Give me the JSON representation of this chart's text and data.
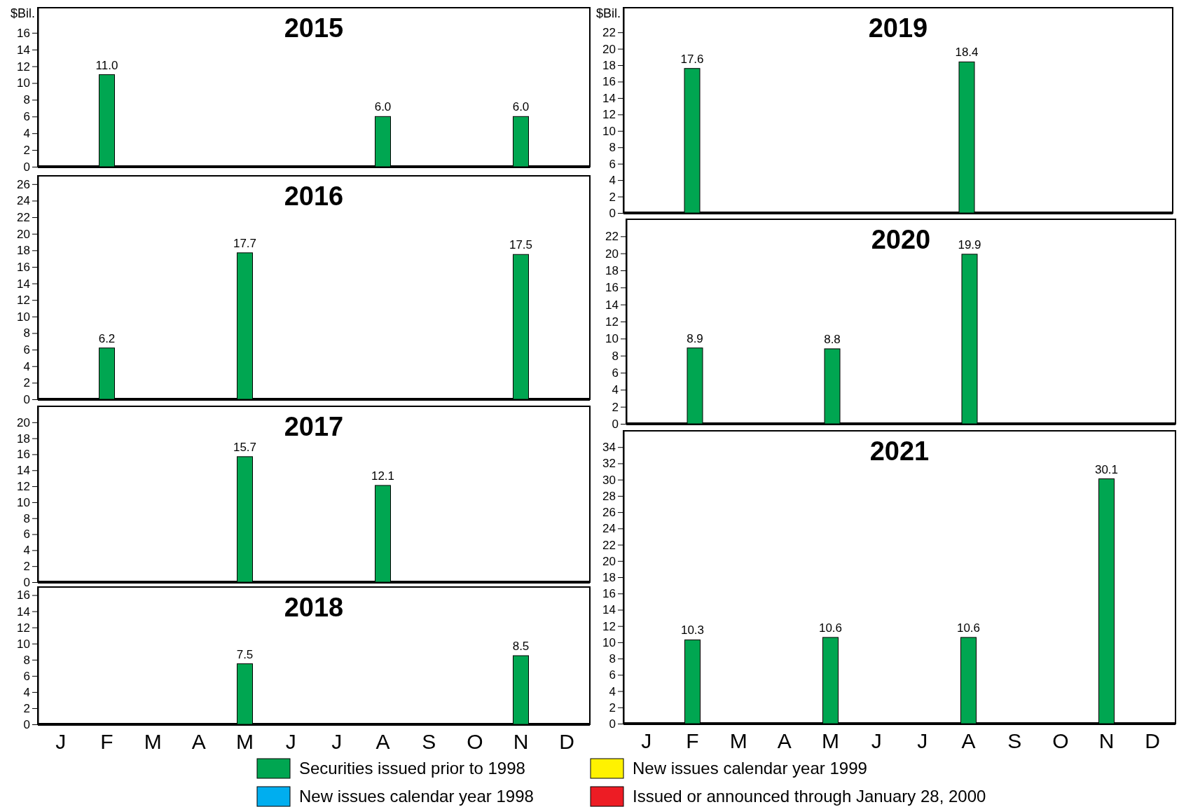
{
  "chart_data": [
    {
      "type": "bar",
      "title": "2015",
      "ylabel": "$Bil.",
      "categories": [
        null,
        null,
        null,
        null,
        null,
        null,
        null,
        null,
        null,
        null,
        null,
        null
      ],
      "ylim": [
        0,
        19
      ],
      "yticks": [
        0,
        2,
        4,
        6,
        8,
        10,
        12,
        14,
        16
      ],
      "series": [
        {
          "color": "#00a651",
          "values": [
            null,
            11.0,
            null,
            null,
            null,
            null,
            null,
            6.0,
            null,
            null,
            6.0,
            null
          ],
          "value_labels": [
            null,
            "11.0",
            null,
            null,
            null,
            null,
            null,
            "6.0",
            null,
            null,
            "6.0",
            null
          ]
        }
      ]
    },
    {
      "type": "bar",
      "title": "2016",
      "categories": [
        null,
        null,
        null,
        null,
        null,
        null,
        null,
        null,
        null,
        null,
        null,
        null
      ],
      "ylim": [
        0,
        27
      ],
      "yticks": [
        0,
        2,
        4,
        6,
        8,
        10,
        12,
        14,
        16,
        18,
        20,
        22,
        24,
        26
      ],
      "series": [
        {
          "color": "#00a651",
          "values": [
            null,
            6.2,
            null,
            null,
            17.7,
            null,
            null,
            null,
            null,
            null,
            17.5,
            null
          ],
          "value_labels": [
            null,
            "6.2",
            null,
            null,
            "17.7",
            null,
            null,
            null,
            null,
            null,
            "17.5",
            null
          ]
        }
      ]
    },
    {
      "type": "bar",
      "title": "2017",
      "categories": [
        null,
        null,
        null,
        null,
        null,
        null,
        null,
        null,
        null,
        null,
        null,
        null
      ],
      "ylim": [
        0,
        22
      ],
      "yticks": [
        0,
        2,
        4,
        6,
        8,
        10,
        12,
        14,
        16,
        18,
        20
      ],
      "series": [
        {
          "color": "#00a651",
          "values": [
            null,
            null,
            null,
            null,
            15.7,
            null,
            null,
            12.1,
            null,
            null,
            null,
            null
          ],
          "value_labels": [
            null,
            null,
            null,
            null,
            "15.7",
            null,
            null,
            "12.1",
            null,
            null,
            null,
            null
          ]
        }
      ]
    },
    {
      "type": "bar",
      "title": "2018",
      "categories": [
        "J",
        "F",
        "M",
        "A",
        "M",
        "J",
        "J",
        "A",
        "S",
        "O",
        "N",
        "D"
      ],
      "ylim": [
        0,
        17
      ],
      "yticks": [
        0,
        2,
        4,
        6,
        8,
        10,
        12,
        14,
        16
      ],
      "series": [
        {
          "color": "#00a651",
          "values": [
            null,
            null,
            null,
            null,
            7.5,
            null,
            null,
            null,
            null,
            null,
            8.5,
            null
          ],
          "value_labels": [
            null,
            null,
            null,
            null,
            "7.5",
            null,
            null,
            null,
            null,
            null,
            "8.5",
            null
          ]
        }
      ]
    },
    {
      "type": "bar",
      "title": "2019",
      "ylabel": "$Bil.",
      "categories": [
        null,
        null,
        null,
        null,
        null,
        null,
        null,
        null,
        null,
        null,
        null,
        null
      ],
      "ylim": [
        0,
        25
      ],
      "yticks": [
        0,
        2,
        4,
        6,
        8,
        10,
        12,
        14,
        16,
        18,
        20,
        22
      ],
      "series": [
        {
          "color": "#00a651",
          "values": [
            null,
            17.6,
            null,
            null,
            null,
            null,
            null,
            18.4,
            null,
            null,
            null,
            null
          ],
          "value_labels": [
            null,
            "17.6",
            null,
            null,
            null,
            null,
            null,
            "18.4",
            null,
            null,
            null,
            null
          ]
        }
      ]
    },
    {
      "type": "bar",
      "title": "2020",
      "categories": [
        null,
        null,
        null,
        null,
        null,
        null,
        null,
        null,
        null,
        null,
        null,
        null
      ],
      "ylim": [
        0,
        24
      ],
      "yticks": [
        0,
        2,
        4,
        6,
        8,
        10,
        12,
        14,
        16,
        18,
        20,
        22
      ],
      "series": [
        {
          "color": "#00a651",
          "values": [
            null,
            8.9,
            null,
            null,
            8.8,
            null,
            null,
            19.9,
            null,
            null,
            null,
            null
          ],
          "value_labels": [
            null,
            "8.9",
            null,
            null,
            "8.8",
            null,
            null,
            "19.9",
            null,
            null,
            null,
            null
          ]
        }
      ]
    },
    {
      "type": "bar",
      "title": "2021",
      "categories": [
        "J",
        "F",
        "M",
        "A",
        "M",
        "J",
        "J",
        "A",
        "S",
        "O",
        "N",
        "D"
      ],
      "ylim": [
        0,
        36
      ],
      "yticks": [
        0,
        2,
        4,
        6,
        8,
        10,
        12,
        14,
        16,
        18,
        20,
        22,
        24,
        26,
        28,
        30,
        32,
        34
      ],
      "legend": "bottom",
      "series": [
        {
          "name": "Securities issued prior to 1998",
          "color": "#00a651",
          "values": [
            null,
            10.3,
            null,
            null,
            10.6,
            null,
            null,
            10.6,
            null,
            null,
            30.1,
            null
          ],
          "value_labels": [
            null,
            "10.3",
            null,
            null,
            "10.6",
            null,
            null,
            "10.6",
            null,
            null,
            "30.1",
            null
          ]
        },
        {
          "name": "New issues calendar year 1998",
          "color": "#00aeef",
          "values": [
            null,
            null,
            null,
            null,
            null,
            null,
            null,
            null,
            null,
            null,
            null,
            null
          ]
        },
        {
          "name": "New issues calendar year 1999",
          "color": "#fff200",
          "values": [
            null,
            null,
            null,
            null,
            null,
            null,
            null,
            null,
            null,
            null,
            null,
            null
          ]
        },
        {
          "name": "Issued or announced through January 28, 2000",
          "color": "#ed1c24",
          "values": [
            null,
            null,
            null,
            null,
            null,
            null,
            null,
            null,
            null,
            null,
            null,
            null
          ]
        }
      ]
    }
  ]
}
